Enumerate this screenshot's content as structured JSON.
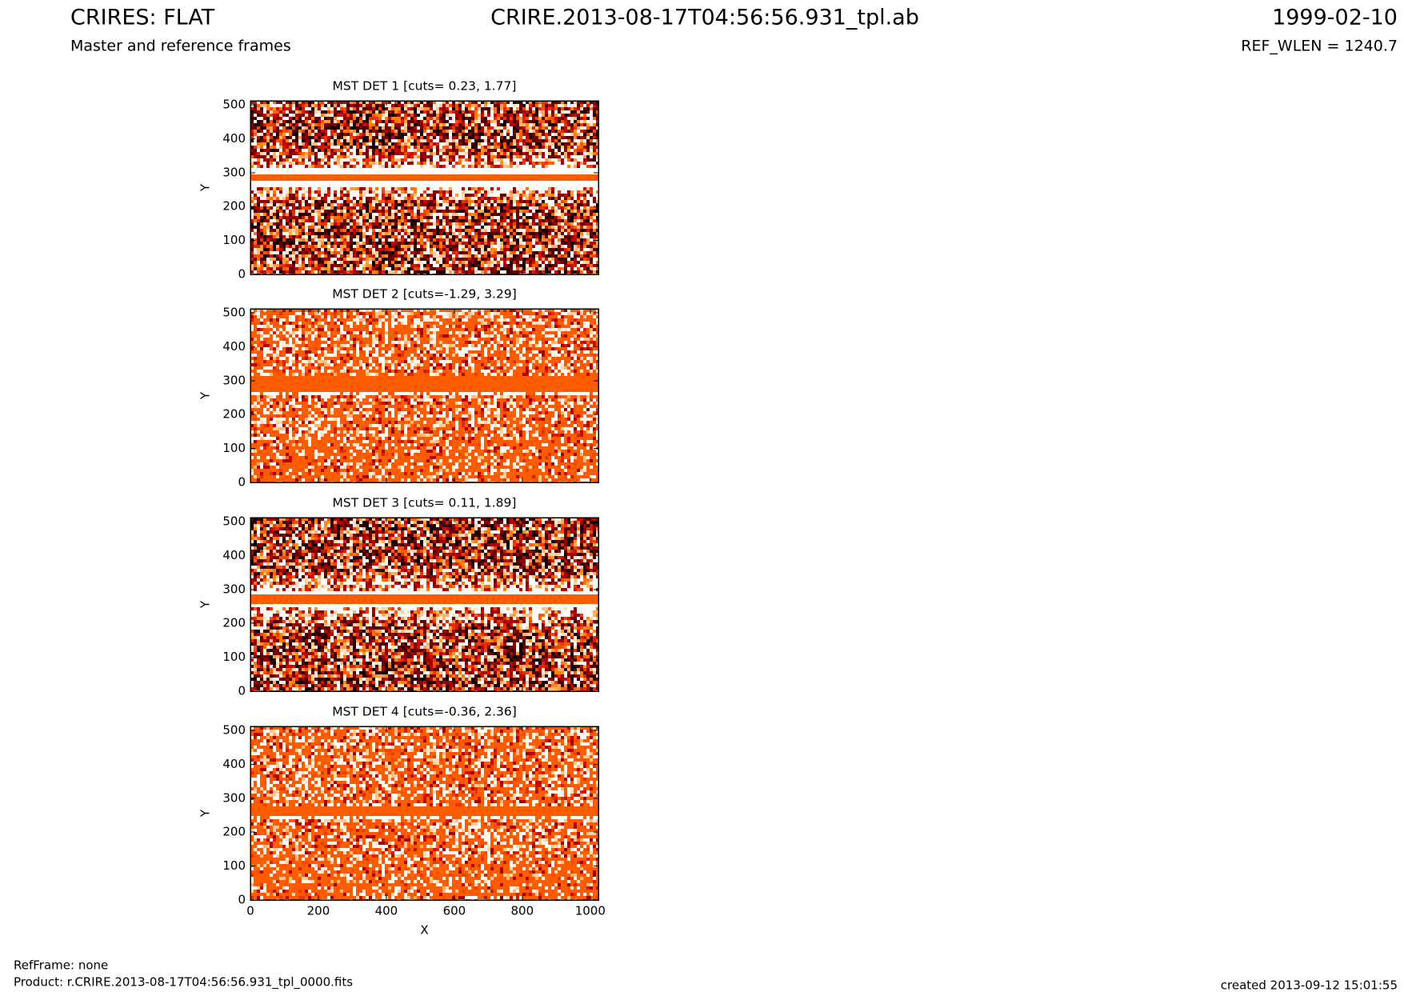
{
  "header": {
    "title": "CRIRES: FLAT",
    "subtitle": "Master and reference frames",
    "file": "CRIRE.2013-08-17T04:56:56.931_tpl.ab",
    "date": "1999-02-10",
    "ref_wlen": "REF_WLEN = 1240.7"
  },
  "chart_data": [
    {
      "type": "image",
      "title": "MST DET 1 [cuts= 0.23, 1.77]",
      "ylabel": "Y",
      "xlim": [
        0,
        1024
      ],
      "ylim": [
        0,
        512
      ],
      "xticks": [
        0,
        200,
        400,
        600,
        800,
        1000
      ],
      "yticks": [
        0,
        100,
        200,
        300,
        400,
        500
      ]
    },
    {
      "type": "image",
      "title": "MST DET 2 [cuts=-1.29, 3.29]",
      "ylabel": "Y",
      "xlim": [
        0,
        1024
      ],
      "ylim": [
        0,
        512
      ],
      "xticks": [
        0,
        200,
        400,
        600,
        800,
        1000
      ],
      "yticks": [
        0,
        100,
        200,
        300,
        400,
        500
      ]
    },
    {
      "type": "image",
      "title": "MST DET 3 [cuts= 0.11, 1.89]",
      "ylabel": "Y",
      "xlim": [
        0,
        1024
      ],
      "ylim": [
        0,
        512
      ],
      "xticks": [
        0,
        200,
        400,
        600,
        800,
        1000
      ],
      "yticks": [
        0,
        100,
        200,
        300,
        400,
        500
      ]
    },
    {
      "type": "image",
      "title": "MST DET 4 [cuts=-0.36, 2.36]",
      "ylabel": "Y",
      "xlabel": "X",
      "xlim": [
        0,
        1024
      ],
      "ylim": [
        0,
        512
      ],
      "xticks": [
        0,
        200,
        400,
        600,
        800,
        1000
      ],
      "yticks": [
        0,
        100,
        200,
        300,
        400,
        500
      ]
    }
  ],
  "footer": {
    "refframe": "RefFrame: none",
    "product": "Product: r.CRIRE.2013-08-17T04:56:56.931_tpl_0000.fits",
    "created": "created 2013-09-12 15:01:55"
  }
}
